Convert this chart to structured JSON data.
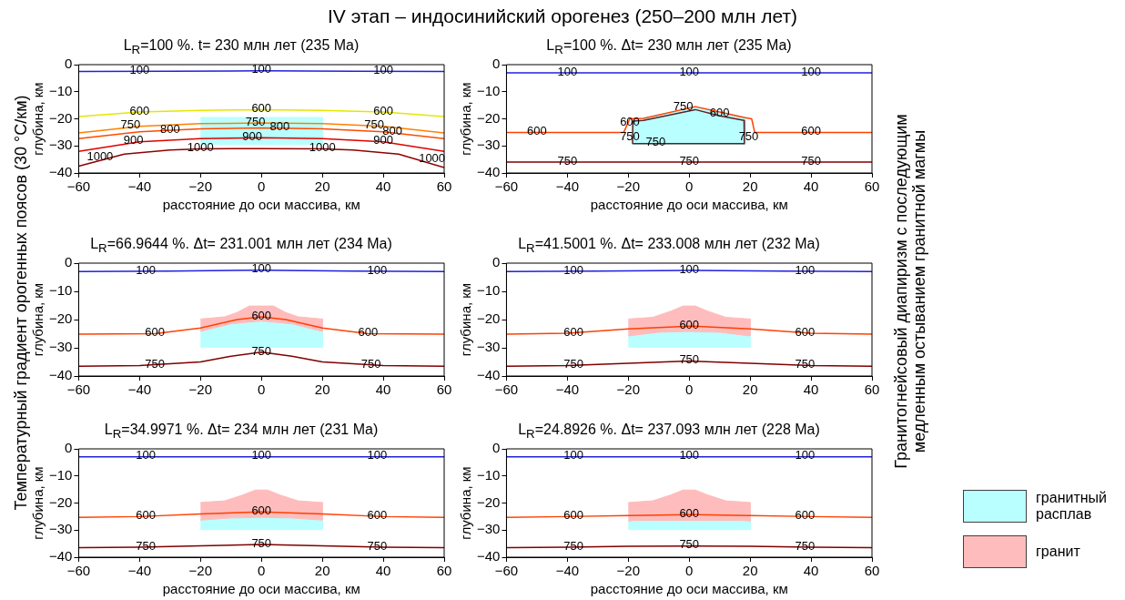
{
  "chart_data": [
    {
      "type": "line",
      "title": "L$_{R}$=100 %. t= 230 млн лет (235 Ma)",
      "xlabel": "расстояние до оси массива, км",
      "ylabel": "глубина, км",
      "xlim": [
        -60,
        60
      ],
      "ylim": [
        -40,
        0
      ],
      "xticks": [
        -60,
        -40,
        -20,
        0,
        20,
        40,
        60
      ],
      "yticks": [
        -40,
        -30,
        -20,
        -10,
        0
      ],
      "annotations": [
        "IV этап – индосинийский орогенез (250–200 млн лет)",
        "Температурный градиент орогенных поясов (30 °С/км)",
        "Гранитогнейсовый диапиризм с последующим медленным остыванием гранитной магмы",
        {
          "text": "100",
          "x": -40,
          "y": -2.4
        },
        {
          "text": "100",
          "x": 0,
          "y": -2.3
        },
        {
          "text": "100",
          "x": 40,
          "y": -2.4
        },
        {
          "text": "600",
          "x": -40,
          "y": -17.5
        },
        {
          "text": "600",
          "x": 0,
          "y": -16.6
        },
        {
          "text": "600",
          "x": 40,
          "y": -17.5
        },
        {
          "text": "750",
          "x": -43,
          "y": -22.6
        },
        {
          "text": "750",
          "x": -2,
          "y": -21.5
        },
        {
          "text": "750",
          "x": 37,
          "y": -22.6
        },
        {
          "text": "800",
          "x": -30,
          "y": -24.2
        },
        {
          "text": "800",
          "x": 6,
          "y": -23.4
        },
        {
          "text": "800",
          "x": 43,
          "y": -25
        },
        {
          "text": "900",
          "x": -42,
          "y": -28.4
        },
        {
          "text": "900",
          "x": -3,
          "y": -27
        },
        {
          "text": "900",
          "x": 40,
          "y": -28.4
        },
        {
          "text": "1000",
          "x": -53,
          "y": -34.5
        },
        {
          "text": "1000",
          "x": -20,
          "y": -31.1
        },
        {
          "text": "1000",
          "x": 20,
          "y": -31.1
        },
        {
          "text": "1000",
          "x": 56,
          "y": -35
        }
      ],
      "series": [
        {
          "type": "area",
          "color": "#b9ffff",
          "x": [
            -20,
            20,
            20,
            -20
          ],
          "values": [
            -19.5,
            -19.5,
            -29.5,
            -29.5
          ]
        },
        {
          "color": "#2020e0",
          "x": [
            -60,
            -30,
            0,
            30,
            60
          ],
          "values": [
            -2.5,
            -2.4,
            -2.3,
            -2.4,
            -2.5
          ]
        },
        {
          "color": "#e6e600",
          "x": [
            -60,
            -40,
            -20,
            0,
            20,
            40,
            60
          ],
          "values": [
            -19.2,
            -17.5,
            -16.9,
            -16.6,
            -16.9,
            -17.5,
            -19.2
          ]
        },
        {
          "color": "#ff8000",
          "x": [
            -60,
            -40,
            -20,
            0,
            20,
            40,
            60
          ],
          "values": [
            -25.2,
            -22.8,
            -21.8,
            -21.5,
            -21.8,
            -22.8,
            -25.2
          ]
        },
        {
          "color": "#ff4a00",
          "x": [
            -60,
            -40,
            -20,
            0,
            20,
            40,
            60
          ],
          "values": [
            -27.3,
            -24.8,
            -23.7,
            -23.4,
            -23.7,
            -24.8,
            -27.3
          ]
        },
        {
          "color": "#e00000",
          "x": [
            -60,
            -40,
            -20,
            0,
            20,
            40,
            60
          ],
          "values": [
            -32,
            -28.5,
            -27.3,
            -27,
            -27.3,
            -28.5,
            -32
          ]
        },
        {
          "color": "#900000",
          "x": [
            -60,
            -45,
            -30,
            -20,
            0,
            20,
            30,
            45,
            60
          ],
          "values": [
            -37.5,
            -33,
            -31.5,
            -31.1,
            -31,
            -31.1,
            -31.5,
            -33,
            -38
          ]
        }
      ]
    },
    {
      "type": "line",
      "title": "L$_{R}$=100 %. Δt= 230 млн лет (235 Ma)",
      "xlabel": "расстояние до оси массива, км",
      "ylabel": "глубина, км",
      "xlim": [
        -60,
        60
      ],
      "ylim": [
        -40,
        0
      ],
      "xticks": [
        -60,
        -40,
        -20,
        0,
        20,
        40,
        60
      ],
      "yticks": [
        -40,
        -30,
        -20,
        -10,
        0
      ],
      "annotations": [
        {
          "text": "100",
          "x": -40,
          "y": -3
        },
        {
          "text": "100",
          "x": 0,
          "y": -3
        },
        {
          "text": "100",
          "x": 40,
          "y": -3
        },
        {
          "text": "600",
          "x": -50,
          "y": -25
        },
        {
          "text": "600",
          "x": 40,
          "y": -25
        },
        {
          "text": "600",
          "x": -19.5,
          "y": -21.5
        },
        {
          "text": "600",
          "x": 10,
          "y": -18.2
        },
        {
          "text": "750",
          "x": -2,
          "y": -16
        },
        {
          "text": "750",
          "x": -19.5,
          "y": -27
        },
        {
          "text": "750",
          "x": -11,
          "y": -29
        },
        {
          "text": "750",
          "x": 19.5,
          "y": -27
        },
        {
          "text": "750",
          "x": -40,
          "y": -36
        },
        {
          "text": "750",
          "x": 0,
          "y": -36
        },
        {
          "text": "750",
          "x": 40,
          "y": -36
        }
      ],
      "series": [
        {
          "type": "area",
          "color": "#b9ffff",
          "x": [
            -19,
            -15,
            2,
            10,
            18.5,
            18.5,
            -19
          ],
          "values": [
            -20,
            -19.8,
            -15.6,
            -17.8,
            -19.6,
            -29.4,
            -29.4
          ]
        },
        {
          "color": "#2020e0",
          "x": [
            -60,
            60
          ],
          "values": [
            -3,
            -3
          ]
        },
        {
          "color": "#ff4000",
          "x": [
            -60,
            -21.5,
            -19.5,
            -15,
            2,
            10,
            18,
            20.5,
            21.5,
            60
          ],
          "values": [
            -25,
            -25,
            -20,
            -19.8,
            -15.5,
            -17.5,
            -19.5,
            -20,
            -25,
            -25
          ]
        },
        {
          "color": "#602020",
          "x": [
            -18.6,
            -18.5,
            -15,
            2,
            10,
            18,
            18.1
          ],
          "values": [
            -29.2,
            -20.8,
            -20.6,
            -16.6,
            -18.9,
            -20.6,
            -29.2
          ]
        },
        {
          "color": "#602020",
          "x": [
            -18.6,
            18.1
          ],
          "values": [
            -29.2,
            -29.2
          ]
        },
        {
          "color": "#800000",
          "x": [
            -60,
            60
          ],
          "values": [
            -36,
            -36
          ]
        }
      ]
    },
    {
      "type": "line",
      "title": "L$_{R}$=66.9644 %. Δt= 231.001 млн лет (234 Ma)",
      "ylabel": "глубина, км",
      "xlim": [
        -60,
        60
      ],
      "ylim": [
        -40,
        0
      ],
      "xticks": [
        -60,
        -40,
        -20,
        0,
        20,
        40,
        60
      ],
      "yticks": [
        -40,
        -30,
        -20,
        -10,
        0
      ],
      "annotations": [
        {
          "text": "100",
          "x": -38,
          "y": -2.9
        },
        {
          "text": "100",
          "x": 0,
          "y": -2.5
        },
        {
          "text": "100",
          "x": 38,
          "y": -2.9
        },
        {
          "text": "600",
          "x": -35,
          "y": -25
        },
        {
          "text": "600",
          "x": 0,
          "y": -19.3
        },
        {
          "text": "600",
          "x": 35,
          "y": -25
        },
        {
          "text": "750",
          "x": -35,
          "y": -36.4
        },
        {
          "text": "750",
          "x": 0,
          "y": -31.6
        },
        {
          "text": "750",
          "x": 36,
          "y": -36.4
        }
      ],
      "series": [
        {
          "type": "area",
          "color": "#ffbcbc",
          "x": [
            -20,
            -12,
            -8,
            -4,
            4,
            8,
            12,
            20,
            20,
            10,
            0,
            -10,
            -20
          ],
          "values": [
            -19.8,
            -19,
            -17.5,
            -15.2,
            -15.2,
            -17.5,
            -19,
            -19.8,
            -24.2,
            -21.5,
            -20.5,
            -21.5,
            -24.2
          ]
        },
        {
          "type": "area",
          "color": "#b9ffff",
          "x": [
            -20,
            -10,
            0,
            10,
            20,
            20,
            -20
          ],
          "values": [
            -24.2,
            -21.5,
            -20.5,
            -21.5,
            -24.2,
            -29.8,
            -29.8
          ]
        },
        {
          "color": "#2020e0",
          "x": [
            -60,
            -30,
            0,
            30,
            60
          ],
          "values": [
            -3,
            -2.8,
            -2.5,
            -2.8,
            -3
          ]
        },
        {
          "color": "#ff4000",
          "x": [
            -60,
            -35,
            -20,
            -8,
            0,
            8,
            20,
            35,
            60
          ],
          "values": [
            -25.2,
            -25,
            -23,
            -20,
            -19,
            -20,
            -23,
            -25,
            -25.2
          ]
        },
        {
          "color": "#800000",
          "x": [
            -60,
            -40,
            -20,
            -10,
            0,
            10,
            20,
            40,
            60
          ],
          "values": [
            -36.5,
            -36.3,
            -35,
            -33,
            -31.5,
            -33,
            -35,
            -36.3,
            -36.5
          ]
        }
      ]
    },
    {
      "type": "line",
      "title": "L$_{R}$=41.5001 %. Δt= 233.008 млн лет (232 Ma)",
      "ylabel": "глубина, км",
      "xlim": [
        -60,
        60
      ],
      "ylim": [
        -40,
        0
      ],
      "xticks": [
        -60,
        -40,
        -20,
        0,
        20,
        40,
        60
      ],
      "yticks": [
        -40,
        -30,
        -20,
        -10,
        0
      ],
      "annotations": [
        {
          "text": "100",
          "x": -38,
          "y": -2.9
        },
        {
          "text": "100",
          "x": 0,
          "y": -2.6
        },
        {
          "text": "100",
          "x": 38,
          "y": -2.9
        },
        {
          "text": "600",
          "x": -38,
          "y": -24.9
        },
        {
          "text": "600",
          "x": 0,
          "y": -22.4
        },
        {
          "text": "600",
          "x": 38,
          "y": -24.9
        },
        {
          "text": "750",
          "x": -38,
          "y": -36.3
        },
        {
          "text": "750",
          "x": 0,
          "y": -34.8
        },
        {
          "text": "750",
          "x": 38,
          "y": -36.3
        }
      ],
      "series": [
        {
          "type": "area",
          "color": "#ffbcbc",
          "x": [
            -20,
            -12,
            -6,
            -2,
            2,
            6,
            12,
            20,
            20,
            10,
            0,
            -10,
            -20
          ],
          "values": [
            -19.8,
            -19.2,
            -17,
            -15.2,
            -15.2,
            -17,
            -19.2,
            -19.8,
            -25.8,
            -24.5,
            -24.2,
            -24.5,
            -25.8
          ]
        },
        {
          "type": "area",
          "color": "#b9ffff",
          "x": [
            -20,
            -10,
            0,
            10,
            20,
            20,
            -20
          ],
          "values": [
            -25.8,
            -24.5,
            -24.2,
            -24.5,
            -25.8,
            -29.8,
            -29.8
          ]
        },
        {
          "color": "#2020e0",
          "x": [
            -60,
            -30,
            0,
            30,
            60
          ],
          "values": [
            -3,
            -2.8,
            -2.6,
            -2.8,
            -3
          ]
        },
        {
          "color": "#ff4000",
          "x": [
            -60,
            -40,
            -20,
            0,
            20,
            40,
            60
          ],
          "values": [
            -25.2,
            -24.8,
            -23.3,
            -22.3,
            -23.3,
            -24.8,
            -25.2
          ]
        },
        {
          "color": "#800000",
          "x": [
            -60,
            -40,
            -20,
            0,
            20,
            40,
            60
          ],
          "values": [
            -36.5,
            -36.3,
            -35.5,
            -34.7,
            -35.5,
            -36.3,
            -36.5
          ]
        }
      ]
    },
    {
      "type": "line",
      "title": "L$_{R}$=34.9971 %. Δt= 234 млн лет (231 Ma)",
      "xlabel": "расстояние до оси массива, км",
      "ylabel": "глубина, км",
      "xlim": [
        -60,
        60
      ],
      "ylim": [
        -40,
        0
      ],
      "xticks": [
        -60,
        -40,
        -20,
        0,
        20,
        40,
        60
      ],
      "yticks": [
        -40,
        -30,
        -20,
        -10,
        0
      ],
      "annotations": [
        {
          "text": "100",
          "x": -38,
          "y": -2.9
        },
        {
          "text": "100",
          "x": 0,
          "y": -2.9
        },
        {
          "text": "100",
          "x": 38,
          "y": -2.9
        },
        {
          "text": "600",
          "x": -38,
          "y": -25
        },
        {
          "text": "600",
          "x": 0,
          "y": -23.3
        },
        {
          "text": "600",
          "x": 38,
          "y": -25
        },
        {
          "text": "750",
          "x": -38,
          "y": -36.3
        },
        {
          "text": "750",
          "x": 0,
          "y": -35.3
        },
        {
          "text": "750",
          "x": 38,
          "y": -36.3
        }
      ],
      "series": [
        {
          "type": "area",
          "color": "#ffbcbc",
          "x": [
            -20,
            -12,
            -6,
            -2,
            2,
            6,
            12,
            20,
            20,
            10,
            0,
            -10,
            -20
          ],
          "values": [
            -19.8,
            -19.2,
            -17,
            -15.2,
            -15.2,
            -17,
            -19.2,
            -19.8,
            -26.3,
            -25.5,
            -25.3,
            -25.5,
            -26.3
          ]
        },
        {
          "type": "area",
          "color": "#b9ffff",
          "x": [
            -20,
            -10,
            0,
            10,
            20,
            20,
            -20
          ],
          "values": [
            -26.3,
            -25.5,
            -25.3,
            -25.5,
            -26.3,
            -29.8,
            -29.8
          ]
        },
        {
          "color": "#2020e0",
          "x": [
            -60,
            60
          ],
          "values": [
            -2.9,
            -2.9
          ]
        },
        {
          "color": "#ff4000",
          "x": [
            -60,
            -40,
            -20,
            0,
            20,
            40,
            60
          ],
          "values": [
            -25.3,
            -25,
            -24,
            -23.3,
            -24,
            -25,
            -25.3
          ]
        },
        {
          "color": "#800000",
          "x": [
            -60,
            -40,
            -20,
            0,
            20,
            40,
            60
          ],
          "values": [
            -36.5,
            -36.3,
            -35.8,
            -35.3,
            -35.8,
            -36.3,
            -36.5
          ]
        }
      ]
    },
    {
      "type": "line",
      "title": "L$_{R}$=24.8926 %. Δt= 237.093 млн лет (228 Ma)",
      "xlabel": "расстояние до оси массива, км",
      "ylabel": "глубина, км",
      "xlim": [
        -60,
        60
      ],
      "ylim": [
        -40,
        0
      ],
      "xticks": [
        -60,
        -40,
        -20,
        0,
        20,
        40,
        60
      ],
      "yticks": [
        -40,
        -30,
        -20,
        -10,
        0
      ],
      "legend": "right",
      "annotations": [
        {
          "text": "100",
          "x": -38,
          "y": -2.9
        },
        {
          "text": "100",
          "x": 0,
          "y": -2.9
        },
        {
          "text": "100",
          "x": 38,
          "y": -2.9
        },
        {
          "text": "600",
          "x": -38,
          "y": -25
        },
        {
          "text": "600",
          "x": 0,
          "y": -24.3
        },
        {
          "text": "600",
          "x": 38,
          "y": -25
        },
        {
          "text": "750",
          "x": -38,
          "y": -36.3
        },
        {
          "text": "750",
          "x": 0,
          "y": -35.9
        },
        {
          "text": "750",
          "x": 38,
          "y": -36.3
        }
      ],
      "series": [
        {
          "type": "area",
          "name": "гранитный расплав",
          "color": "#b9ffff",
          "x": [
            -20,
            -18,
            18,
            20,
            20,
            -20
          ],
          "values": [
            -27,
            -26.8,
            -26.8,
            -27,
            -29.8,
            -29.8
          ]
        },
        {
          "type": "area",
          "name": "гранит",
          "color": "#ffbcbc",
          "x": [
            -20,
            -12,
            -6,
            -2,
            2,
            6,
            12,
            20,
            20,
            18,
            -18,
            -20
          ],
          "values": [
            -19.8,
            -19.2,
            -17,
            -15.2,
            -15.2,
            -17,
            -19.2,
            -19.8,
            -27,
            -26.8,
            -26.8,
            -27
          ]
        },
        {
          "color": "#2020e0",
          "x": [
            -60,
            60
          ],
          "values": [
            -2.9,
            -2.9
          ]
        },
        {
          "color": "#ff4000",
          "x": [
            -60,
            -40,
            -20,
            0,
            20,
            40,
            60
          ],
          "values": [
            -25.3,
            -25,
            -24.6,
            -24.3,
            -24.6,
            -25,
            -25.3
          ]
        },
        {
          "color": "#800000",
          "x": [
            -60,
            -40,
            -20,
            0,
            20,
            40,
            60
          ],
          "values": [
            -36.5,
            -36.3,
            -36,
            -35.9,
            -36,
            -36.3,
            -36.5
          ]
        }
      ]
    }
  ]
}
